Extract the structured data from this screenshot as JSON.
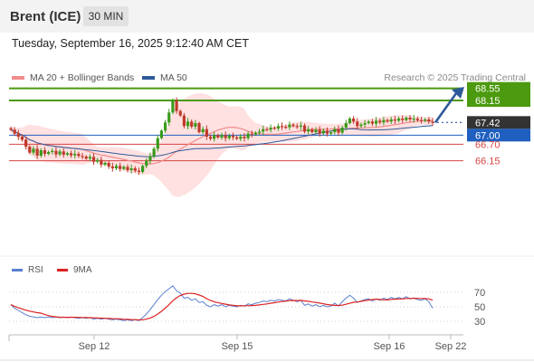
{
  "header": {
    "symbol": "Brent (ICE)",
    "timeframe": "30 MIN",
    "datetime": "Tuesday, September 16, 2025 9:12:40 AM CET"
  },
  "legend": {
    "items": [
      {
        "label": "MA 20 + Bollinger Bands",
        "color": "#f28b8b"
      },
      {
        "label": "MA 50",
        "color": "#2e5a9a"
      }
    ],
    "credit": "Research © 2025 Trading Central"
  },
  "price_levels": [
    {
      "label": "68.55",
      "value": 68.55,
      "kind": "target",
      "color": "#4c9a0f"
    },
    {
      "label": "68.15",
      "value": 68.15,
      "kind": "target",
      "color": "#4c9a0f"
    },
    {
      "label": "67.42",
      "value": 67.42,
      "kind": "last",
      "color": "#333333"
    },
    {
      "label": "67.00",
      "value": 67.0,
      "kind": "pivot",
      "color": "#1f5fbf"
    },
    {
      "label": "66.70",
      "value": 66.7,
      "kind": "support",
      "color": "#d64545"
    },
    {
      "label": "66.15",
      "value": 66.15,
      "kind": "support",
      "color": "#d64545"
    }
  ],
  "rsi_panel": {
    "legend": [
      {
        "label": "RSI",
        "color": "#5b7fd1"
      },
      {
        "label": "9MA",
        "color": "#dd2222"
      }
    ],
    "ticks": [
      "70",
      "50",
      "30"
    ]
  },
  "x_axis": {
    "ticks": [
      "Sep 12",
      "Sep 15",
      "Sep 16",
      "Sep 22"
    ]
  },
  "colors": {
    "up": "#3a9a1a",
    "down": "#c0392b",
    "band": "#ffd9d9",
    "ma20": "#f28b8b",
    "ma50": "#2e5a9a",
    "arrow": "#2e5a9a"
  },
  "chart_data": {
    "type": "candlestick",
    "title": "Brent (ICE)",
    "timeframe": "30 MIN",
    "ylim": [
      65.1,
      68.75
    ],
    "horizontal_levels": [
      68.55,
      68.15,
      67.42,
      67.0,
      66.7,
      66.15
    ],
    "x_ticks": [
      "Sep 12",
      "Sep 15",
      "Sep 16",
      "Sep 22"
    ],
    "close": [
      67.18,
      67.05,
      66.95,
      66.85,
      66.62,
      66.42,
      66.55,
      66.32,
      66.5,
      66.38,
      66.44,
      66.48,
      66.36,
      66.46,
      66.35,
      66.4,
      66.33,
      66.38,
      66.31,
      66.29,
      66.22,
      66.28,
      66.12,
      66.18,
      66.02,
      66.08,
      65.96,
      65.9,
      65.98,
      65.88,
      65.95,
      65.84,
      65.9,
      65.82,
      65.78,
      65.98,
      66.15,
      66.3,
      66.55,
      66.9,
      67.15,
      67.42,
      67.75,
      68.15,
      67.8,
      67.65,
      67.3,
      67.45,
      67.28,
      67.4,
      67.1,
      67.2,
      66.95,
      66.88,
      67.0,
      66.92,
      67.0,
      66.9,
      66.98,
      66.93,
      66.88,
      66.95,
      66.9,
      67.05,
      67.02,
      67.08,
      67.12,
      67.2,
      67.18,
      67.25,
      67.22,
      67.3,
      67.28,
      67.26,
      67.35,
      67.3,
      67.28,
      67.32,
      67.12,
      67.2,
      67.1,
      67.18,
      67.06,
      67.15,
      67.05,
      67.1,
      67.2,
      67.08,
      67.25,
      67.4,
      67.55,
      67.45,
      67.3,
      67.35,
      67.4,
      67.45,
      67.38,
      67.48,
      67.42,
      67.5,
      67.45,
      67.52,
      67.48,
      67.55,
      67.5,
      67.58,
      67.52,
      67.55,
      67.5,
      67.48,
      67.52,
      67.45,
      67.42
    ],
    "rsi": [
      53,
      48,
      45,
      42,
      39,
      37,
      36,
      35,
      36,
      35,
      36,
      35,
      36,
      35,
      36,
      35,
      36,
      35,
      34,
      35,
      34,
      35,
      33,
      34,
      33,
      34,
      33,
      32,
      33,
      32,
      31,
      32,
      31,
      32,
      31,
      35,
      40,
      46,
      53,
      60,
      66,
      71,
      75,
      79,
      72,
      69,
      62,
      63,
      59,
      61,
      56,
      57,
      52,
      50,
      53,
      51,
      53,
      50,
      52,
      51,
      50,
      52,
      51,
      54,
      53,
      55,
      56,
      58,
      57,
      59,
      58,
      60,
      59,
      58,
      61,
      59,
      57,
      59,
      52,
      54,
      51,
      53,
      50,
      52,
      50,
      51,
      55,
      51,
      57,
      62,
      66,
      62,
      56,
      58,
      60,
      61,
      58,
      61,
      59,
      62,
      60,
      63,
      61,
      63,
      61,
      64,
      61,
      62,
      60,
      59,
      61,
      57,
      48
    ],
    "rsi_ylim": [
      20,
      80
    ]
  }
}
